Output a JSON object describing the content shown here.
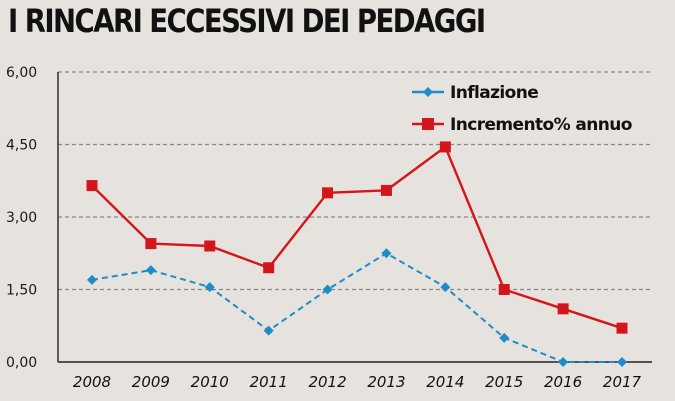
{
  "chart_data": {
    "type": "line",
    "title": "I RINCARI ECCESSIVI DEI PEDAGGI",
    "xlabel": "",
    "ylabel": "",
    "categories": [
      "2008",
      "2009",
      "2010",
      "2011",
      "2012",
      "2013",
      "2014",
      "2015",
      "2016",
      "2017"
    ],
    "y_ticks": [
      "0,00",
      "1,50",
      "3,00",
      "4,50",
      "6,00"
    ],
    "ylim": [
      0,
      6
    ],
    "grid": "horizontal dashed",
    "legend_position": "top-right",
    "series": [
      {
        "name": "Inflazione",
        "color": "#1e8cc8",
        "marker": "diamond",
        "line_style": "dashed",
        "values": [
          1.7,
          1.9,
          1.55,
          0.65,
          1.5,
          2.25,
          1.55,
          0.5,
          0.0,
          0.0
        ]
      },
      {
        "name": "Incremento% annuo",
        "color": "#d4161c",
        "marker": "square",
        "line_style": "solid",
        "values": [
          3.65,
          2.45,
          2.4,
          1.95,
          3.5,
          3.55,
          4.45,
          1.5,
          1.1,
          0.7
        ]
      }
    ]
  }
}
